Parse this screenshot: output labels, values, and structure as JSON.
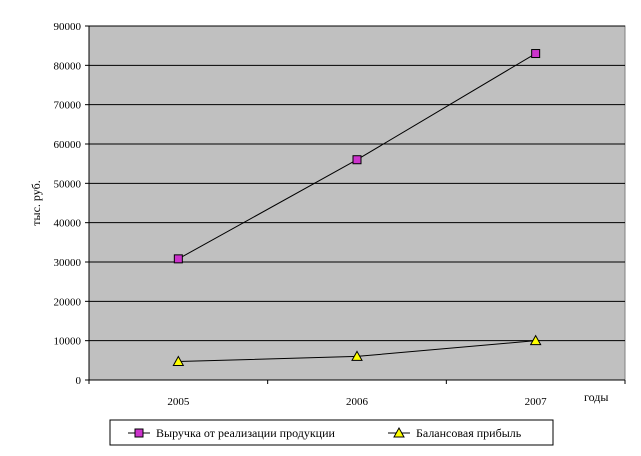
{
  "chart_data": {
    "type": "line",
    "categories": [
      "2005",
      "2006",
      "2007"
    ],
    "series": [
      {
        "name": "Выручка от реализации продукции",
        "values": [
          30800,
          56000,
          83000
        ],
        "color": "#cc33cc",
        "marker": "square"
      },
      {
        "name": "Балансовая прибыль",
        "values": [
          4700,
          6000,
          10000
        ],
        "color": "#ffff00",
        "marker": "triangle"
      }
    ],
    "ylabel": "тыс. руб.",
    "xlabel": "годы",
    "ylim": [
      0,
      90000
    ],
    "yticks": [
      "0",
      "10000",
      "20000",
      "30000",
      "40000",
      "50000",
      "60000",
      "70000",
      "80000",
      "90000"
    ],
    "grid": true,
    "plot_background": "#c0c0c0",
    "legend_placement": "bottom"
  }
}
